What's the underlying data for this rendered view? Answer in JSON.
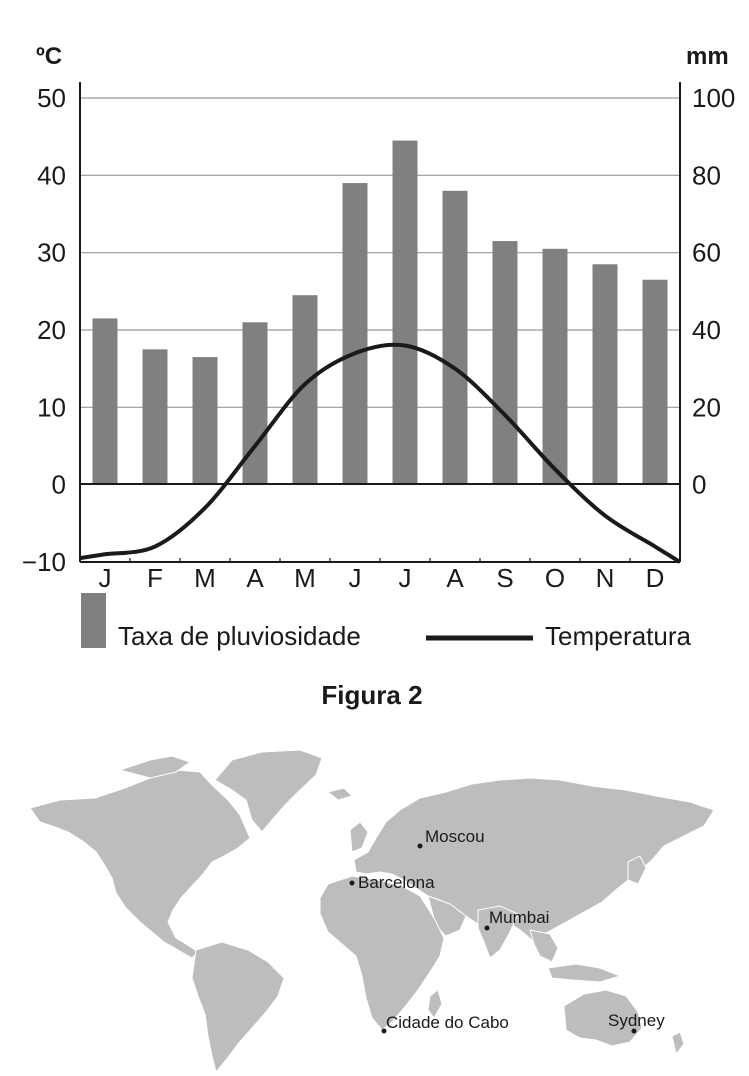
{
  "chart_data": {
    "type": "bar",
    "categories": [
      "J",
      "F",
      "M",
      "A",
      "M",
      "J",
      "J",
      "A",
      "S",
      "O",
      "N",
      "D"
    ],
    "series": [
      {
        "name": "Taxa de pluviosidade",
        "type": "bar",
        "axis": "right",
        "unit": "mm",
        "values": [
          43,
          35,
          33,
          42,
          49,
          78,
          89,
          76,
          63,
          61,
          57,
          53
        ]
      },
      {
        "name": "Temperatura",
        "type": "line",
        "axis": "left",
        "unit": "ºC",
        "values": [
          -9,
          -8,
          -3,
          5,
          13,
          17,
          18,
          15,
          9,
          2,
          -4,
          -8
        ]
      }
    ],
    "left_axis": {
      "label": "ºC",
      "ticks": [
        "50",
        "40",
        "30",
        "20",
        "10",
        "0",
        "−10"
      ],
      "ylim": [
        -10,
        50
      ]
    },
    "right_axis": {
      "label": "mm",
      "ticks": [
        "100",
        "80",
        "60",
        "40",
        "20",
        "0"
      ],
      "ylim": [
        0,
        100
      ]
    },
    "bar_color": "#808080",
    "line_color": "#1a1a1a",
    "grid": true
  },
  "caption": "Figura 2",
  "map": {
    "cities": [
      {
        "name": "Moscou"
      },
      {
        "name": "Barcelona"
      },
      {
        "name": "Mumbai"
      },
      {
        "name": "Cidade do Cabo"
      },
      {
        "name": "Sydney"
      }
    ],
    "land_color": "#bdbdbd"
  }
}
